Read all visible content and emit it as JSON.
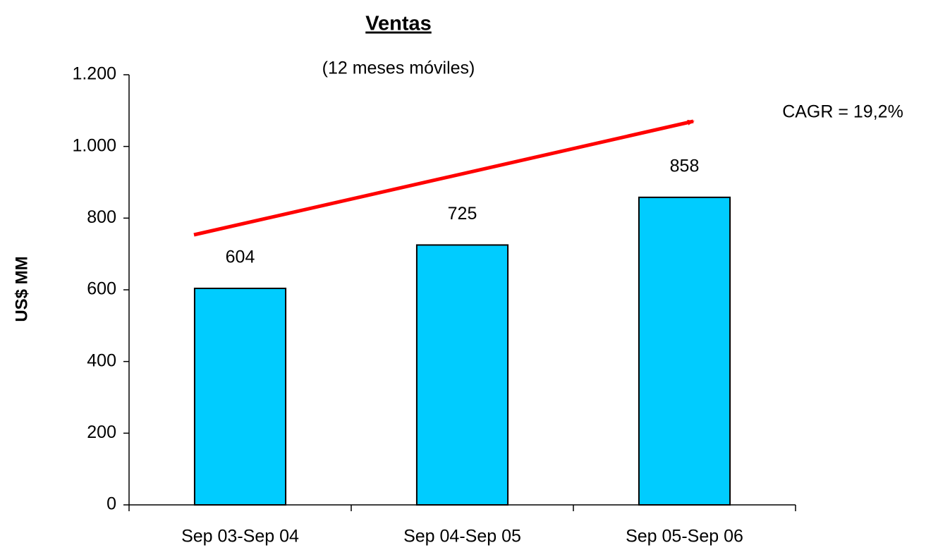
{
  "chart_data": {
    "type": "bar",
    "title": "Ventas",
    "subtitle": "(12 meses móviles)",
    "annotation": "CAGR = 19,2%",
    "y_label": "US$ MM",
    "categories": [
      "Sep 03-Sep 04",
      "Sep 04-Sep 05",
      "Sep 05-Sep 06"
    ],
    "values": [
      604,
      725,
      858
    ],
    "color": "#00ccff",
    "ylim": [
      0,
      1200
    ],
    "yticks": [
      0,
      200,
      400,
      600,
      800,
      {
        "value": 1000,
        "label": "1.000"
      },
      {
        "value": 1200,
        "label": "1.200"
      }
    ],
    "grid": false
  }
}
